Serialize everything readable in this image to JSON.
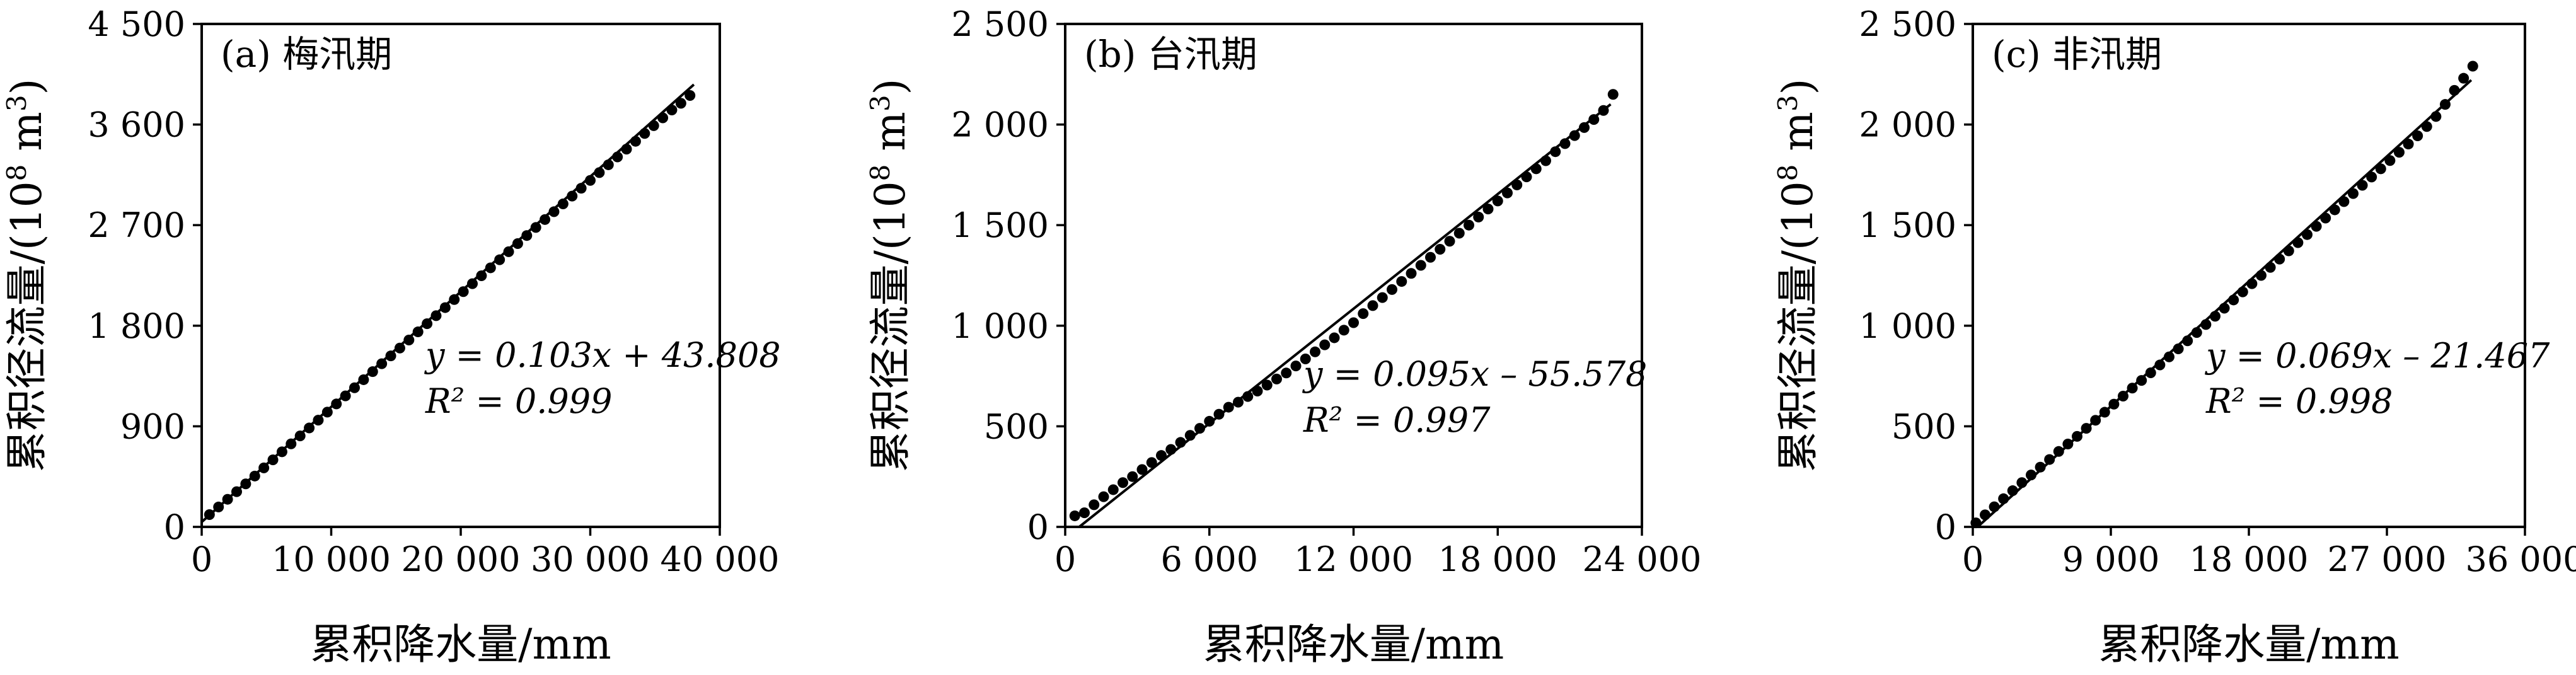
{
  "chart_data": [
    {
      "type": "scatter",
      "panel_label": "(a) 梅汛期",
      "xlabel": "累积降水量/mm",
      "ylabel_prefix": "累积径流量/(10",
      "ylabel_exp": "8",
      "ylabel_unit": " m",
      "ylabel_unit_exp": "3",
      "ylabel_suffix": ")",
      "xlim": [
        0,
        40000
      ],
      "ylim": [
        0,
        4500
      ],
      "xticks": [
        0,
        10000,
        20000,
        30000,
        40000
      ],
      "xtick_labels": [
        "0",
        "10 000",
        "20 000",
        "30 000",
        "40 000"
      ],
      "yticks": [
        0,
        900,
        1800,
        2700,
        3600,
        4500
      ],
      "ytick_labels": [
        "0",
        "900",
        "1 800",
        "2 700",
        "3 600",
        "4 500"
      ],
      "equation": "y = 0.103x + 43.808",
      "r2_label": "R² = 0.999",
      "fit": {
        "slope": 0.103,
        "intercept": 43.808,
        "x_start": 0,
        "x_end": 38000
      },
      "points": {
        "x": [
          600,
          1300,
          2000,
          2700,
          3400,
          4100,
          4800,
          5500,
          6200,
          6900,
          7600,
          8300,
          9000,
          9700,
          10400,
          11100,
          11800,
          12500,
          13200,
          13900,
          14600,
          15300,
          16000,
          16700,
          17400,
          18100,
          18800,
          19500,
          20200,
          20900,
          21600,
          22300,
          23000,
          23700,
          24400,
          25100,
          25800,
          26500,
          27200,
          27900,
          28600,
          29300,
          30000,
          30700,
          31400,
          32100,
          32800,
          33500,
          34200,
          34900,
          35600,
          36300,
          37000,
          37700
        ],
        "y": [
          110,
          178,
          247,
          315,
          385,
          455,
          528,
          600,
          672,
          743,
          814,
          885,
          955,
          1027,
          1100,
          1172,
          1245,
          1317,
          1389,
          1460,
          1530,
          1600,
          1672,
          1745,
          1818,
          1890,
          1962,
          2034,
          2105,
          2176,
          2247,
          2318,
          2390,
          2462,
          2535,
          2607,
          2679,
          2750,
          2820,
          2890,
          2960,
          3030,
          3100,
          3170,
          3240,
          3310,
          3380,
          3450,
          3520,
          3590,
          3660,
          3730,
          3790,
          3860
        ]
      }
    },
    {
      "type": "scatter",
      "panel_label": "(b) 台汛期",
      "xlabel": "累积降水量/mm",
      "ylabel_prefix": "累积径流量/(10",
      "ylabel_exp": "8",
      "ylabel_unit": " m",
      "ylabel_unit_exp": "3",
      "ylabel_suffix": ")",
      "xlim": [
        0,
        24000
      ],
      "ylim": [
        0,
        2500
      ],
      "xticks": [
        0,
        6000,
        12000,
        18000,
        24000
      ],
      "xtick_labels": [
        "0",
        "6 000",
        "12 000",
        "18 000",
        "24 000"
      ],
      "yticks": [
        0,
        500,
        1000,
        1500,
        2000,
        2500
      ],
      "ytick_labels": [
        "0",
        "500",
        "1 000",
        "1 500",
        "2 000",
        "2 500"
      ],
      "equation": "y = 0.095x – 55.578",
      "r2_label": "R² = 0.997",
      "fit": {
        "slope": 0.095,
        "intercept": -55.578,
        "x_start": 585,
        "x_end": 22700
      },
      "points": {
        "x": [
          400,
          800,
          1200,
          1600,
          2000,
          2400,
          2800,
          3200,
          3600,
          4000,
          4400,
          4800,
          5200,
          5600,
          6000,
          6400,
          6800,
          7200,
          7600,
          8000,
          8400,
          8800,
          9200,
          9600,
          10000,
          10400,
          10800,
          11200,
          11600,
          12000,
          12400,
          12800,
          13200,
          13600,
          14000,
          14400,
          14800,
          15200,
          15600,
          16000,
          16400,
          16800,
          17200,
          17600,
          18000,
          18400,
          18800,
          19200,
          19600,
          20000,
          20400,
          20800,
          21200,
          21600,
          22000,
          22400,
          22800
        ],
        "y": [
          55,
          70,
          110,
          150,
          185,
          220,
          250,
          285,
          320,
          355,
          385,
          420,
          455,
          490,
          525,
          560,
          595,
          620,
          648,
          675,
          705,
          735,
          765,
          800,
          835,
          870,
          905,
          940,
          978,
          1015,
          1060,
          1100,
          1140,
          1180,
          1220,
          1260,
          1300,
          1340,
          1380,
          1420,
          1460,
          1500,
          1540,
          1580,
          1620,
          1660,
          1700,
          1740,
          1780,
          1820,
          1865,
          1905,
          1945,
          1985,
          2025,
          2070,
          2150
        ]
      }
    },
    {
      "type": "scatter",
      "panel_label": "(c) 非汛期",
      "xlabel": "累积降水量/mm",
      "ylabel_prefix": "累积径流量/(10",
      "ylabel_exp": "8",
      "ylabel_unit": " m",
      "ylabel_unit_exp": "3",
      "ylabel_suffix": ")",
      "xlim": [
        0,
        36000
      ],
      "ylim": [
        0,
        2500
      ],
      "xticks": [
        0,
        9000,
        18000,
        27000,
        36000
      ],
      "xtick_labels": [
        "0",
        "9 000",
        "18 000",
        "27 000",
        "36 000"
      ],
      "yticks": [
        0,
        500,
        1000,
        1500,
        2000,
        2500
      ],
      "ytick_labels": [
        "0",
        "500",
        "1 000",
        "1 500",
        "2 000",
        "2 500"
      ],
      "equation": "y = 0.069x – 21.467",
      "r2_label": "R² = 0.998",
      "fit": {
        "slope": 0.069,
        "intercept": -21.467,
        "x_start": 311,
        "x_end": 32500
      },
      "points": {
        "x": [
          200,
          800,
          1400,
          2000,
          2600,
          3200,
          3800,
          4400,
          5000,
          5600,
          6200,
          6800,
          7400,
          8000,
          8600,
          9200,
          9800,
          10400,
          11000,
          11600,
          12200,
          12800,
          13400,
          14000,
          14600,
          15200,
          15800,
          16400,
          17000,
          17600,
          18200,
          18800,
          19400,
          20000,
          20600,
          21200,
          21800,
          22400,
          23000,
          23600,
          24200,
          24800,
          25400,
          26000,
          26600,
          27200,
          27800,
          28400,
          29000,
          29600,
          30200,
          30800,
          31400,
          32000,
          32600
        ],
        "y": [
          20,
          60,
          100,
          140,
          180,
          220,
          258,
          297,
          335,
          375,
          412,
          450,
          490,
          530,
          570,
          610,
          650,
          690,
          728,
          766,
          805,
          845,
          885,
          925,
          966,
          1006,
          1047,
          1087,
          1128,
          1168,
          1209,
          1250,
          1290,
          1331,
          1372,
          1413,
          1453,
          1494,
          1535,
          1576,
          1617,
          1657,
          1698,
          1739,
          1780,
          1821,
          1862,
          1903,
          1944,
          1990,
          2040,
          2100,
          2170,
          2230,
          2290
        ]
      }
    }
  ]
}
